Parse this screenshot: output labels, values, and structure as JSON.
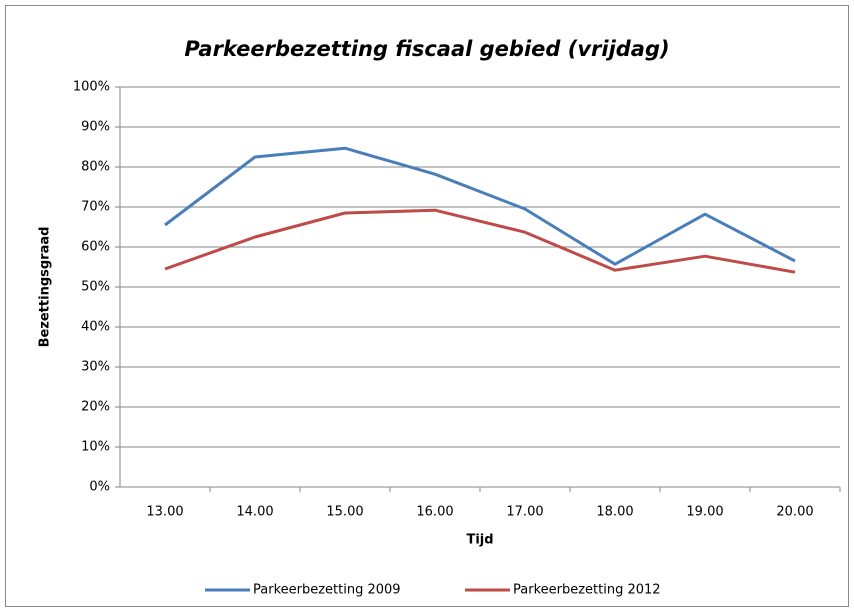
{
  "chart_data": {
    "type": "line",
    "title": "Parkeerbezetting fiscaal gebied (vrijdag)",
    "x_label": "Tijd",
    "y_label": "Bezettingsgraad",
    "categories": [
      "13.00",
      "14.00",
      "15.00",
      "16.00",
      "17.00",
      "18.00",
      "19.00",
      "20.00"
    ],
    "series": [
      {
        "name": "Parkeerbezetting 2009",
        "color": "#4a7ebb",
        "values": [
          65.5,
          82.5,
          84.7,
          78.2,
          69.5,
          55.7,
          68.2,
          56.5
        ]
      },
      {
        "name": "Parkeerbezetting 2012",
        "color": "#be4b48",
        "values": [
          54.5,
          62.5,
          68.5,
          69.2,
          63.7,
          54.2,
          57.7,
          53.7
        ]
      }
    ],
    "ylim": [
      0,
      100
    ],
    "yticks": [
      {
        "value": 0,
        "label": "0%"
      },
      {
        "value": 10,
        "label": "10%"
      },
      {
        "value": 20,
        "label": "20%"
      },
      {
        "value": 30,
        "label": "30%"
      },
      {
        "value": 40,
        "label": "40%"
      },
      {
        "value": 50,
        "label": "50%"
      },
      {
        "value": 60,
        "label": "60%"
      },
      {
        "value": 70,
        "label": "70%"
      },
      {
        "value": 80,
        "label": "80%"
      },
      {
        "value": 90,
        "label": "90%"
      },
      {
        "value": 100,
        "label": "100%"
      }
    ],
    "grid": true,
    "legend": "bottom"
  }
}
